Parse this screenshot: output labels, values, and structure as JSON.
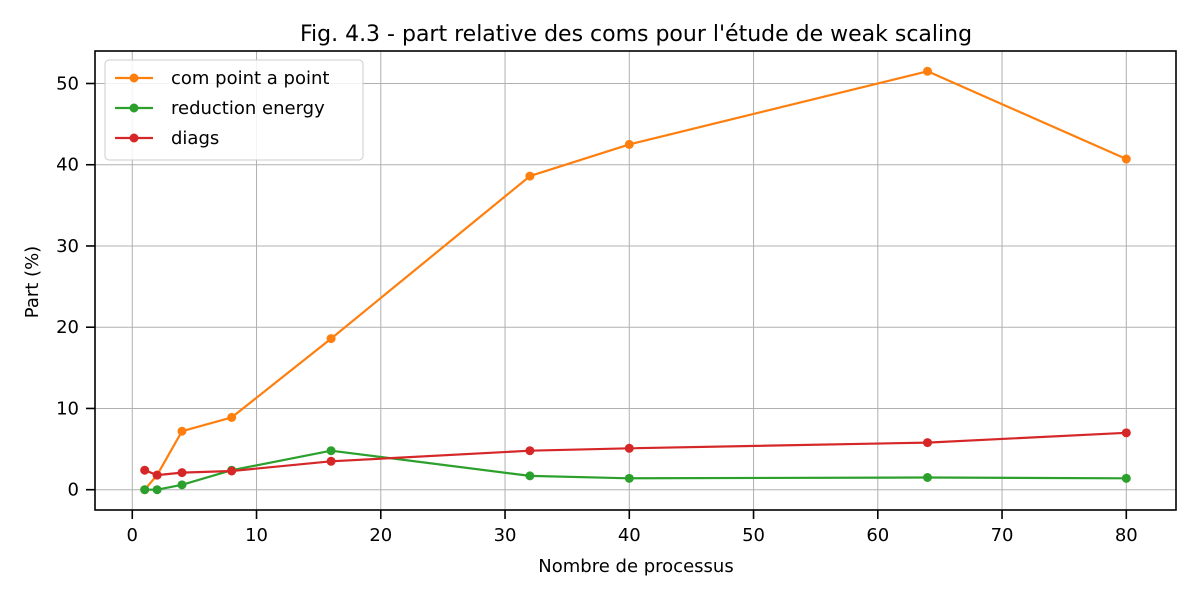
{
  "chart_data": {
    "type": "line",
    "title": "Fig. 4.3 - part relative des coms pour l'étude de weak scaling",
    "xlabel": "Nombre de processus",
    "ylabel": "Part (%)",
    "xlim": [
      -3,
      84
    ],
    "ylim": [
      -2.5,
      54
    ],
    "xticks": [
      0,
      10,
      20,
      30,
      40,
      50,
      60,
      70,
      80
    ],
    "yticks": [
      0,
      10,
      20,
      30,
      40,
      50
    ],
    "grid": true,
    "legend_position": "top-left",
    "x": [
      1,
      2,
      4,
      8,
      16,
      32,
      40,
      64,
      80
    ],
    "series": [
      {
        "name": "com point a point",
        "color": "#ff7f0e",
        "values": [
          0.0,
          1.8,
          7.2,
          8.9,
          18.6,
          38.6,
          42.5,
          51.5,
          40.7
        ]
      },
      {
        "name": "reduction energy",
        "color": "#2ca02c",
        "values": [
          0.0,
          0.0,
          0.6,
          2.4,
          4.8,
          1.7,
          1.4,
          1.5,
          1.4
        ]
      },
      {
        "name": "diags",
        "color": "#d62728",
        "values": [
          2.4,
          1.8,
          2.1,
          2.3,
          3.5,
          4.8,
          5.1,
          5.8,
          7.0
        ]
      }
    ]
  }
}
